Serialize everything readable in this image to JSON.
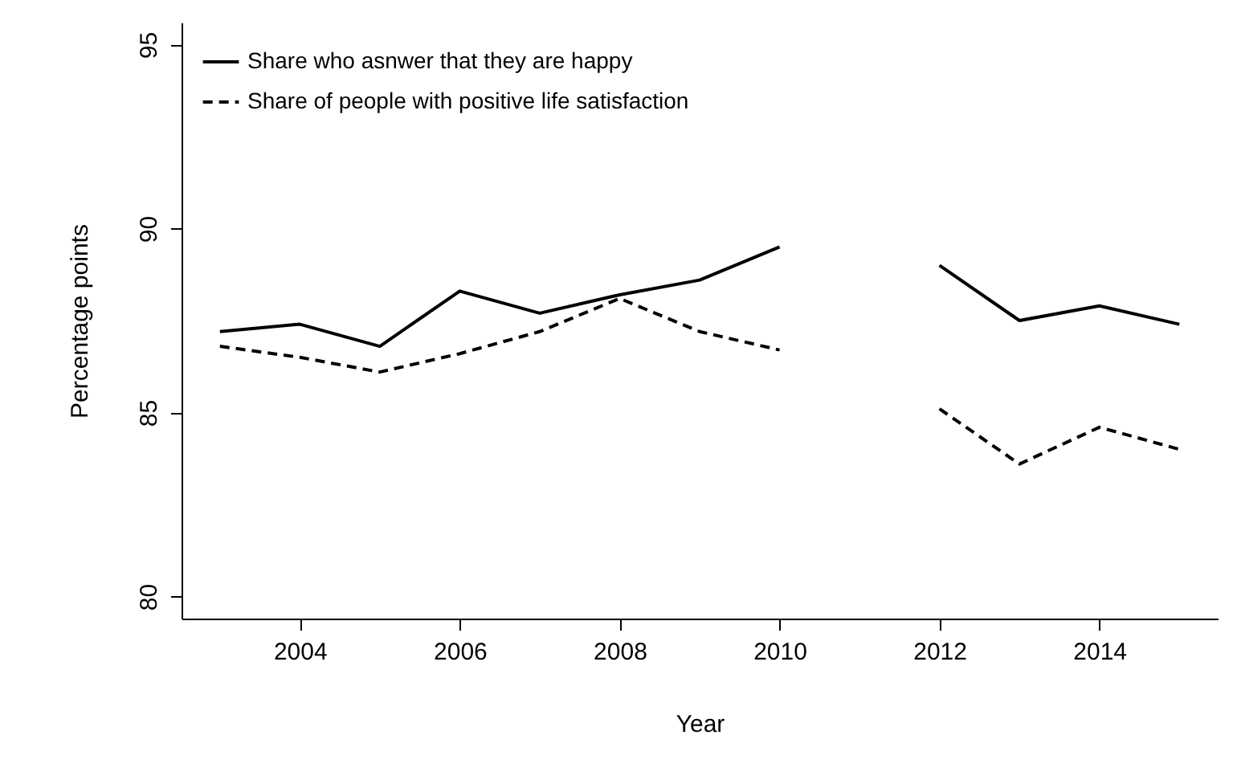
{
  "chart_data": {
    "type": "line",
    "xlabel": "Year",
    "ylabel": "Percentage points",
    "x": [
      2003,
      2004,
      2005,
      2006,
      2007,
      2008,
      2009,
      2010,
      2011,
      2012,
      2013,
      2014,
      2015
    ],
    "series": [
      {
        "name": "Share who asnwer that they are happy",
        "color": "#000000",
        "line_style": "solid",
        "values": [
          87.2,
          87.4,
          86.8,
          88.3,
          87.7,
          88.2,
          88.6,
          89.5,
          null,
          89.0,
          87.5,
          87.9,
          87.4
        ]
      },
      {
        "name": "Share of people with positive life satisfaction",
        "color": "#000000",
        "line_style": "dashed",
        "values": [
          86.8,
          86.5,
          86.1,
          86.6,
          87.2,
          88.1,
          87.2,
          86.7,
          null,
          85.1,
          83.6,
          84.6,
          84.0
        ]
      }
    ],
    "xlim": [
      2002.52,
      2015.48
    ],
    "xticks": [
      2004,
      2006,
      2008,
      2010,
      2012,
      2014
    ],
    "ylim": [
      79.4,
      95.6
    ],
    "yticks": [
      80,
      85,
      90,
      95
    ],
    "legend": "top left",
    "grid": false,
    "marker": "none"
  }
}
